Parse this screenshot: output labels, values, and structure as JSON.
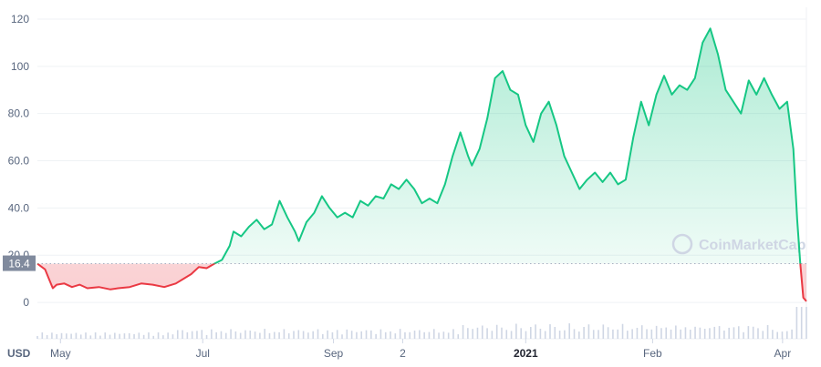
{
  "chart_data": {
    "type": "area",
    "currency_label": "USD",
    "watermark": "CoinMarketCap",
    "current_price_label": "16.4",
    "y_ticks": [
      "120",
      "100",
      "80.0",
      "60.0",
      "40.0",
      "20.0",
      "0"
    ],
    "y_tick_values": [
      120,
      100,
      80,
      60,
      40,
      20,
      0
    ],
    "ylim": [
      -10,
      125
    ],
    "x_ticks": [
      {
        "label": "May",
        "t": 0.03
      },
      {
        "label": "Jul",
        "t": 0.215
      },
      {
        "label": "Sep",
        "t": 0.385
      },
      {
        "label": "2",
        "t": 0.475
      },
      {
        "label": "2021",
        "t": 0.635,
        "bold": true
      },
      {
        "label": "Feb",
        "t": 0.8
      },
      {
        "label": "Apr",
        "t": 0.969
      }
    ],
    "baseline_value": 16.4,
    "colors": {
      "up": "#16c784",
      "down": "#ea3943",
      "baseline": "#a6b0c3",
      "volume": "#cfd6e4",
      "label_bg": "#808a9d"
    },
    "series": [
      {
        "points": [
          [
            0.0,
            16.4
          ],
          [
            0.01,
            14.0
          ],
          [
            0.015,
            10.0
          ],
          [
            0.02,
            6.0
          ],
          [
            0.025,
            7.5
          ],
          [
            0.035,
            8.0
          ],
          [
            0.045,
            6.5
          ],
          [
            0.055,
            7.5
          ],
          [
            0.065,
            6.0
          ],
          [
            0.08,
            6.5
          ],
          [
            0.095,
            5.5
          ],
          [
            0.105,
            6.0
          ],
          [
            0.12,
            6.5
          ],
          [
            0.135,
            8.0
          ],
          [
            0.15,
            7.5
          ],
          [
            0.165,
            6.5
          ],
          [
            0.18,
            8.0
          ],
          [
            0.19,
            10.0
          ],
          [
            0.2,
            12.0
          ],
          [
            0.21,
            15.0
          ],
          [
            0.22,
            14.5
          ],
          [
            0.23,
            16.4
          ],
          [
            0.24,
            18.0
          ],
          [
            0.25,
            24.0
          ],
          [
            0.255,
            30.0
          ],
          [
            0.265,
            28.0
          ],
          [
            0.275,
            32.0
          ],
          [
            0.285,
            35.0
          ],
          [
            0.295,
            31.0
          ],
          [
            0.305,
            33.0
          ],
          [
            0.315,
            43.0
          ],
          [
            0.325,
            36.0
          ],
          [
            0.335,
            30.0
          ],
          [
            0.34,
            26.0
          ],
          [
            0.35,
            34.0
          ],
          [
            0.36,
            38.0
          ],
          [
            0.37,
            45.0
          ],
          [
            0.38,
            40.0
          ],
          [
            0.39,
            36.0
          ],
          [
            0.4,
            38.0
          ],
          [
            0.41,
            36.0
          ],
          [
            0.42,
            43.0
          ],
          [
            0.43,
            41.0
          ],
          [
            0.44,
            45.0
          ],
          [
            0.45,
            44.0
          ],
          [
            0.46,
            50.0
          ],
          [
            0.47,
            48.0
          ],
          [
            0.48,
            52.0
          ],
          [
            0.49,
            48.0
          ],
          [
            0.5,
            42.0
          ],
          [
            0.51,
            44.0
          ],
          [
            0.52,
            42.0
          ],
          [
            0.53,
            50.0
          ],
          [
            0.54,
            62.0
          ],
          [
            0.55,
            72.0
          ],
          [
            0.56,
            62.0
          ],
          [
            0.565,
            58.0
          ],
          [
            0.575,
            65.0
          ],
          [
            0.585,
            78.0
          ],
          [
            0.595,
            95.0
          ],
          [
            0.605,
            98.0
          ],
          [
            0.615,
            90.0
          ],
          [
            0.625,
            88.0
          ],
          [
            0.635,
            75.0
          ],
          [
            0.645,
            68.0
          ],
          [
            0.655,
            80.0
          ],
          [
            0.665,
            85.0
          ],
          [
            0.675,
            75.0
          ],
          [
            0.685,
            62.0
          ],
          [
            0.695,
            55.0
          ],
          [
            0.705,
            48.0
          ],
          [
            0.715,
            52.0
          ],
          [
            0.725,
            55.0
          ],
          [
            0.735,
            51.0
          ],
          [
            0.745,
            55.0
          ],
          [
            0.755,
            50.0
          ],
          [
            0.765,
            52.0
          ],
          [
            0.775,
            70.0
          ],
          [
            0.785,
            85.0
          ],
          [
            0.795,
            75.0
          ],
          [
            0.805,
            88.0
          ],
          [
            0.815,
            96.0
          ],
          [
            0.825,
            88.0
          ],
          [
            0.835,
            92.0
          ],
          [
            0.845,
            90.0
          ],
          [
            0.855,
            95.0
          ],
          [
            0.865,
            110.0
          ],
          [
            0.875,
            116.0
          ],
          [
            0.885,
            105.0
          ],
          [
            0.895,
            90.0
          ],
          [
            0.905,
            85.0
          ],
          [
            0.915,
            80.0
          ],
          [
            0.925,
            94.0
          ],
          [
            0.935,
            88.0
          ],
          [
            0.945,
            95.0
          ],
          [
            0.955,
            88.0
          ],
          [
            0.965,
            82.0
          ],
          [
            0.975,
            85.0
          ],
          [
            0.983,
            65.0
          ],
          [
            0.988,
            35.0
          ],
          [
            0.992,
            16.4
          ],
          [
            0.996,
            2.0
          ],
          [
            1.0,
            0.5
          ]
        ]
      }
    ]
  }
}
